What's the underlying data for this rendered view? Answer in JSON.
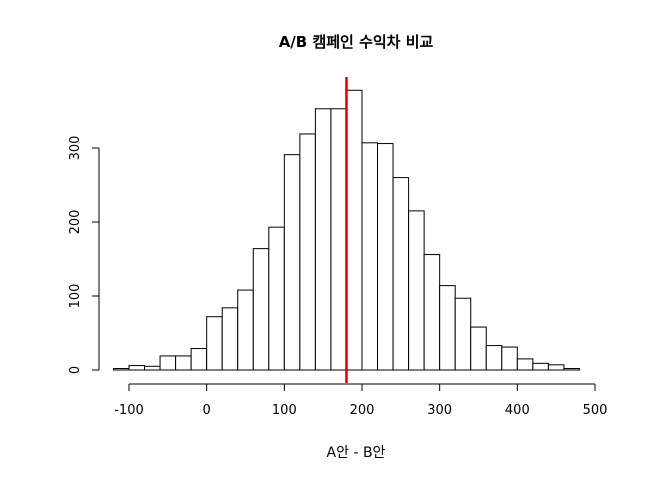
{
  "chart_data": {
    "type": "bar",
    "title": "A/B 캠페인 수익차 비교",
    "xlabel": "A안 - B안",
    "ylabel": "",
    "bin_start": -120,
    "bin_width": 20,
    "values": [
      2,
      6,
      5,
      19,
      19,
      29,
      72,
      84,
      108,
      164,
      193,
      291,
      319,
      353,
      353,
      378,
      307,
      306,
      260,
      215,
      156,
      114,
      97,
      58,
      33,
      31,
      15,
      9,
      7,
      2
    ],
    "xlim": [
      -140,
      520
    ],
    "ylim": [
      0,
      400
    ],
    "x_ticks": [
      "-100",
      "0",
      "100",
      "200",
      "300",
      "400",
      "500"
    ],
    "y_ticks": [
      "0",
      "100",
      "200",
      "300"
    ],
    "reference_line": {
      "x": 180,
      "color": "#dd0000"
    },
    "bar_fill": "#ffffff",
    "bar_stroke": "#000000",
    "grid": false,
    "legend": "none"
  }
}
